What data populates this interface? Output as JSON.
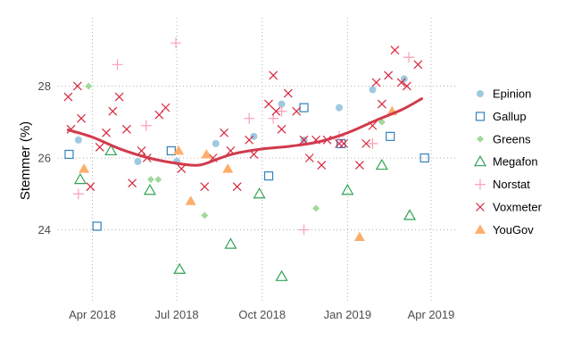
{
  "chart_data": {
    "type": "scatter",
    "xlabel": "",
    "ylabel": "Stemmer (%)",
    "x_ticks": [
      "2018-04-01",
      "2018-07-01",
      "2018-10-01",
      "2019-01-01",
      "2019-04-01"
    ],
    "x_tick_labels": [
      "Apr 2018",
      "Jul 2018",
      "Oct 2018",
      "Jan 2019",
      "Apr 2019"
    ],
    "xlim": [
      "2018-02-23",
      "2019-04-27"
    ],
    "y_ticks": [
      24,
      26,
      28
    ],
    "ylim": [
      22.0,
      29.9
    ],
    "grid": true,
    "legend_position": "right",
    "colors": {
      "Epinion": "#9ecae1",
      "Gallup": "#3182bd",
      "Greens": "#a1d99b",
      "Megafon": "#31a354",
      "Norstat": "#fc9fb5",
      "Voxmeter": "#d7263d",
      "YouGov": "#fdae6b",
      "trend": "#d13b4d"
    },
    "series": [
      {
        "name": "Epinion",
        "marker": "circle",
        "points": [
          [
            "2018-03-17",
            26.5
          ],
          [
            "2018-05-20",
            25.9
          ],
          [
            "2018-07-01",
            25.9
          ],
          [
            "2018-08-12",
            26.4
          ],
          [
            "2018-09-22",
            26.6
          ],
          [
            "2018-10-22",
            27.5
          ],
          [
            "2018-11-15",
            26.5
          ],
          [
            "2018-12-23",
            27.4
          ],
          [
            "2019-01-28",
            27.9
          ],
          [
            "2019-03-03",
            28.2
          ]
        ]
      },
      {
        "name": "Gallup",
        "marker": "square",
        "points": [
          [
            "2018-03-07",
            26.1
          ],
          [
            "2018-04-06",
            24.1
          ],
          [
            "2018-06-25",
            26.2
          ],
          [
            "2018-10-08",
            25.5
          ],
          [
            "2018-11-15",
            27.4
          ],
          [
            "2018-12-25",
            26.4
          ],
          [
            "2019-02-16",
            26.6
          ],
          [
            "2019-03-25",
            26.0
          ]
        ]
      },
      {
        "name": "Greens",
        "marker": "diamond",
        "points": [
          [
            "2018-03-28",
            28.0
          ],
          [
            "2018-06-03",
            25.4
          ],
          [
            "2018-06-11",
            25.4
          ],
          [
            "2018-07-31",
            24.4
          ],
          [
            "2018-11-28",
            24.6
          ],
          [
            "2019-02-07",
            27.0
          ]
        ]
      },
      {
        "name": "Megafon",
        "marker": "triangle-open",
        "points": [
          [
            "2018-03-19",
            25.4
          ],
          [
            "2018-04-21",
            26.2
          ],
          [
            "2018-06-02",
            25.1
          ],
          [
            "2018-07-04",
            22.9
          ],
          [
            "2018-08-28",
            23.6
          ],
          [
            "2018-09-28",
            25.0
          ],
          [
            "2018-10-22",
            22.7
          ],
          [
            "2019-01-01",
            25.1
          ],
          [
            "2019-02-07",
            25.8
          ],
          [
            "2019-03-09",
            24.4
          ]
        ]
      },
      {
        "name": "Norstat",
        "marker": "plus",
        "points": [
          [
            "2018-03-17",
            25.0
          ],
          [
            "2018-04-28",
            28.6
          ],
          [
            "2018-05-29",
            26.9
          ],
          [
            "2018-06-30",
            29.2
          ],
          [
            "2018-09-17",
            27.1
          ],
          [
            "2018-10-13",
            27.1
          ],
          [
            "2018-10-22",
            27.3
          ],
          [
            "2018-11-15",
            24.0
          ],
          [
            "2018-12-23",
            26.6
          ],
          [
            "2019-01-28",
            26.4
          ],
          [
            "2019-03-08",
            28.8
          ]
        ]
      },
      {
        "name": "Voxmeter",
        "marker": "x",
        "points": [
          [
            "2018-03-06",
            27.7
          ],
          [
            "2018-03-09",
            26.8
          ],
          [
            "2018-03-16",
            28.0
          ],
          [
            "2018-03-20",
            27.1
          ],
          [
            "2018-03-30",
            25.2
          ],
          [
            "2018-04-09",
            26.3
          ],
          [
            "2018-04-16",
            26.7
          ],
          [
            "2018-04-23",
            27.3
          ],
          [
            "2018-04-30",
            27.7
          ],
          [
            "2018-05-08",
            26.8
          ],
          [
            "2018-05-14",
            25.3
          ],
          [
            "2018-05-24",
            26.2
          ],
          [
            "2018-05-30",
            26.0
          ],
          [
            "2018-06-12",
            27.2
          ],
          [
            "2018-06-19",
            27.4
          ],
          [
            "2018-07-06",
            25.7
          ],
          [
            "2018-07-31",
            25.2
          ],
          [
            "2018-08-09",
            26.0
          ],
          [
            "2018-08-21",
            26.7
          ],
          [
            "2018-08-28",
            26.2
          ],
          [
            "2018-09-04",
            25.2
          ],
          [
            "2018-09-17",
            26.5
          ],
          [
            "2018-09-22",
            26.1
          ],
          [
            "2018-10-08",
            27.5
          ],
          [
            "2018-10-13",
            28.3
          ],
          [
            "2018-10-16",
            27.3
          ],
          [
            "2018-10-22",
            26.8
          ],
          [
            "2018-10-29",
            27.8
          ],
          [
            "2018-11-07",
            27.3
          ],
          [
            "2018-11-15",
            26.5
          ],
          [
            "2018-11-21",
            26.0
          ],
          [
            "2018-11-28",
            26.5
          ],
          [
            "2018-12-04",
            25.8
          ],
          [
            "2018-12-10",
            26.5
          ],
          [
            "2018-12-23",
            26.4
          ],
          [
            "2018-12-28",
            26.4
          ],
          [
            "2019-01-14",
            25.8
          ],
          [
            "2019-01-21",
            26.4
          ],
          [
            "2019-01-28",
            26.9
          ],
          [
            "2019-02-01",
            28.1
          ],
          [
            "2019-02-07",
            27.5
          ],
          [
            "2019-02-14",
            28.3
          ],
          [
            "2019-02-21",
            29.0
          ],
          [
            "2019-02-28",
            28.1
          ],
          [
            "2019-03-06",
            28.0
          ],
          [
            "2019-03-18",
            28.6
          ]
        ]
      },
      {
        "name": "YouGov",
        "marker": "triangle",
        "points": [
          [
            "2018-03-23",
            25.7
          ],
          [
            "2018-07-03",
            26.2
          ],
          [
            "2018-07-16",
            24.8
          ],
          [
            "2018-08-02",
            26.1
          ],
          [
            "2018-08-25",
            25.7
          ],
          [
            "2019-01-14",
            23.8
          ],
          [
            "2019-02-18",
            27.3
          ]
        ]
      }
    ],
    "trend": {
      "name": "trend",
      "points": [
        [
          "2018-03-06",
          26.78
        ],
        [
          "2018-04-01",
          26.58
        ],
        [
          "2018-05-01",
          26.25
        ],
        [
          "2018-06-01",
          26.0
        ],
        [
          "2018-07-01",
          25.85
        ],
        [
          "2018-07-25",
          25.8
        ],
        [
          "2018-08-15",
          25.98
        ],
        [
          "2018-09-01",
          26.12
        ],
        [
          "2018-10-01",
          26.25
        ],
        [
          "2018-11-01",
          26.33
        ],
        [
          "2018-12-01",
          26.45
        ],
        [
          "2019-01-01",
          26.7
        ],
        [
          "2019-02-01",
          27.05
        ],
        [
          "2019-03-01",
          27.35
        ],
        [
          "2019-03-22",
          27.65
        ]
      ]
    }
  }
}
